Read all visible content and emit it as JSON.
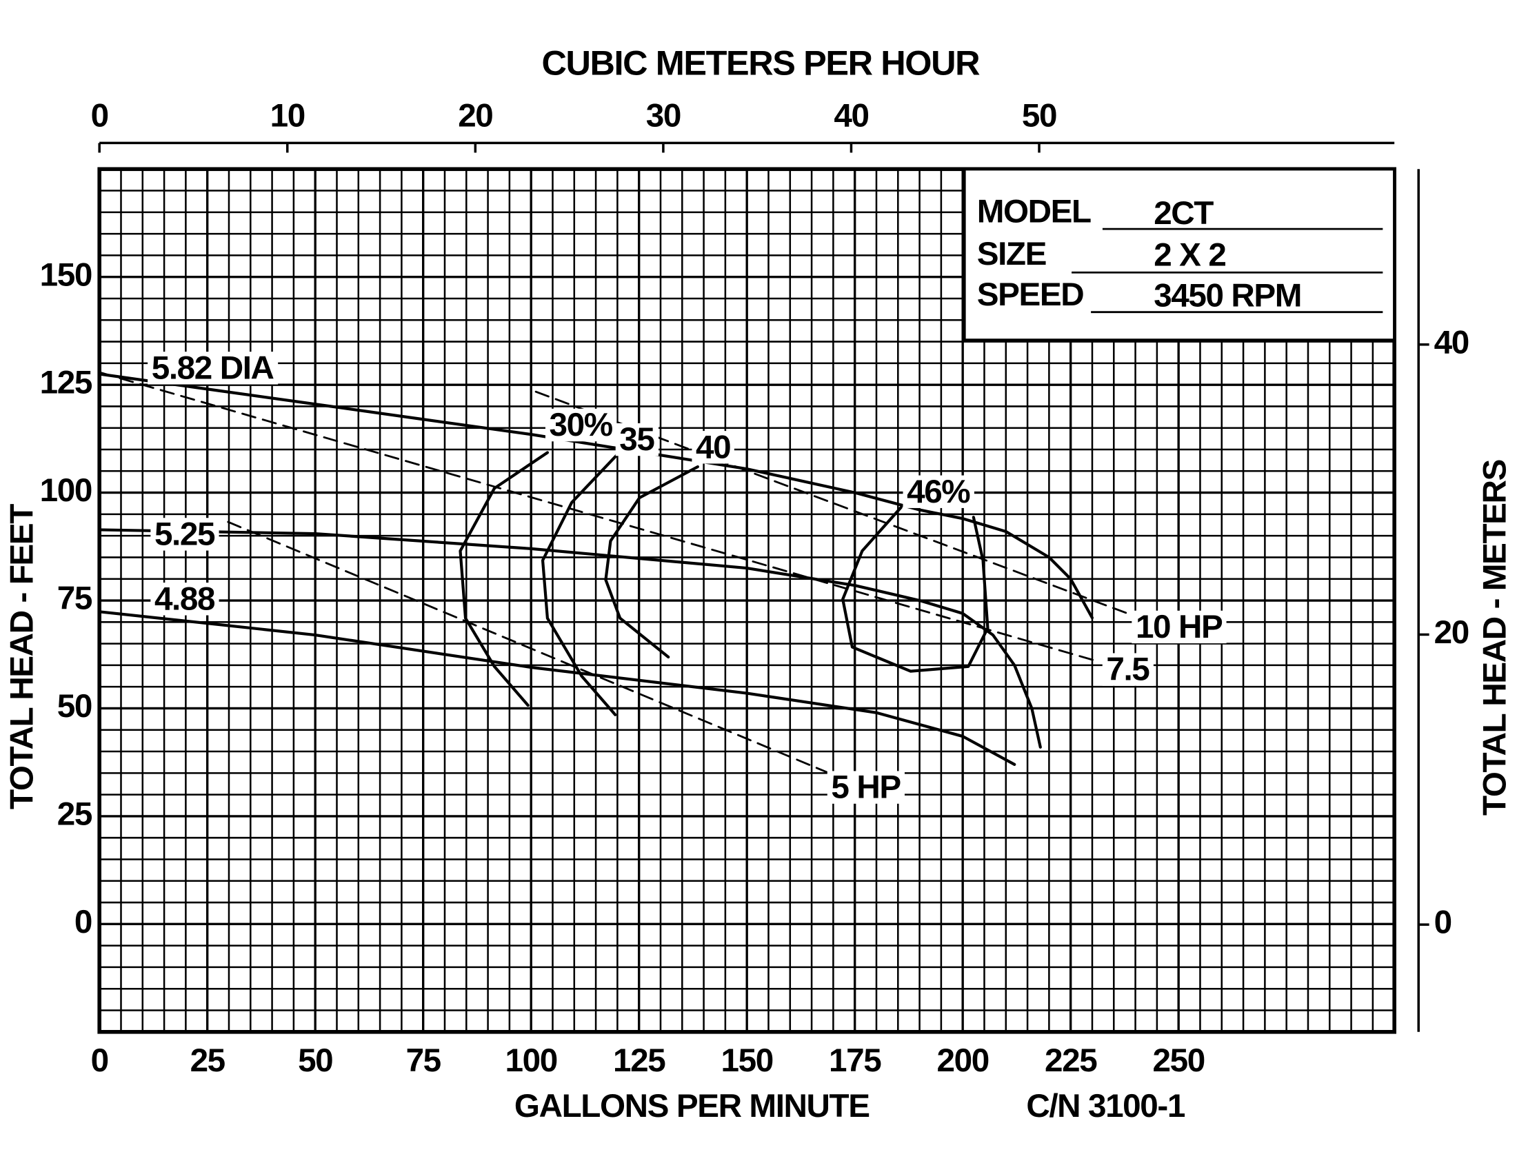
{
  "chart_data": {
    "type": "line",
    "x2label": "CUBIC METERS PER HOUR",
    "xlabel": "GALLONS PER MINUTE",
    "ylabel": "TOTAL HEAD - FEET",
    "y2label": "TOTAL HEAD - METERS",
    "code": "C/N 3100-1",
    "xlim": [
      0,
      300
    ],
    "xticks": [
      0,
      25,
      50,
      75,
      100,
      125,
      150,
      175,
      200,
      225,
      250
    ],
    "x2lim": [
      0,
      68.9
    ],
    "x2ticks": [
      0,
      10,
      20,
      30,
      40,
      50
    ],
    "ylim": [
      -25,
      175
    ],
    "yticks": [
      0,
      25,
      50,
      75,
      100,
      125,
      150
    ],
    "y2lim": [
      -7.4,
      52.1
    ],
    "y2ticks": [
      0,
      20,
      40
    ],
    "grid": true,
    "info": {
      "rows": [
        [
          "MODEL",
          "2CT"
        ],
        [
          "SIZE",
          "2 X 2"
        ],
        [
          "SPEED",
          "3450 RPM"
        ]
      ]
    },
    "series": [
      {
        "name": "5.82 DIA",
        "color": "#000000",
        "dashed": false,
        "x": [
          0,
          25,
          50,
          75,
          100,
          125,
          150,
          175,
          190,
          200,
          210,
          220,
          225,
          230
        ],
        "values": [
          127.5,
          124,
          120.5,
          117,
          113.5,
          109.5,
          105.5,
          100,
          96,
          94,
          91,
          85,
          80,
          71
        ]
      },
      {
        "name": "5.25",
        "color": "#000000",
        "dashed": false,
        "x": [
          0,
          50,
          100,
          150,
          175,
          190,
          200,
          207,
          212,
          216,
          218
        ],
        "values": [
          91.4,
          90.5,
          87,
          82.5,
          78.5,
          75,
          72,
          67,
          60,
          50,
          41
        ]
      },
      {
        "name": "4.88",
        "color": "#000000",
        "dashed": false,
        "x": [
          0,
          50,
          100,
          150,
          180,
          200,
          212
        ],
        "values": [
          72.4,
          67,
          59.5,
          53.5,
          49,
          43.5,
          37
        ]
      },
      {
        "name": "30%",
        "color": "#000000",
        "dashed": false,
        "x": [
          103.8,
          91.5,
          83.6,
          84.8,
          91.5,
          99.3
        ],
        "values": [
          109.3,
          101,
          86.5,
          70.9,
          59.7,
          50.7
        ]
      },
      {
        "name": "35",
        "color": "#000000",
        "dashed": false,
        "x": [
          120.6,
          109.4,
          102.7,
          103.8,
          111.7,
          119.5
        ],
        "values": [
          109.5,
          97.7,
          84.3,
          70.9,
          57.5,
          48.5
        ]
      },
      {
        "name": "40",
        "color": "#000000",
        "dashed": false,
        "x": [
          138.6,
          125.1,
          118.4,
          117.3,
          120.6,
          131.8
        ],
        "values": [
          106,
          98.8,
          88.8,
          79.8,
          70.9,
          61.9
        ]
      },
      {
        "name": "46%",
        "color": "#000000",
        "dashed": false,
        "x": [
          185.7,
          176.7,
          172.2,
          174.4,
          187.9,
          201.3,
          205.8,
          204.7,
          202.5
        ],
        "values": [
          96.6,
          86.5,
          75.3,
          64.2,
          58.6,
          59.7,
          68.6,
          84.3,
          94.3
        ]
      },
      {
        "name": "10 HP",
        "color": "#000000",
        "dashed": true,
        "x": [
          101.1,
          239.5
        ],
        "values": [
          123.4,
          71.5
        ]
      },
      {
        "name": "7.5",
        "color": "#000000",
        "dashed": true,
        "x": [
          0,
          231.6
        ],
        "values": [
          127.9,
          60.8
        ]
      },
      {
        "name": "5 HP",
        "color": "#000000",
        "dashed": true,
        "x": [
          29.8,
          168.8
        ],
        "values": [
          93.2,
          35.1
        ]
      }
    ]
  }
}
